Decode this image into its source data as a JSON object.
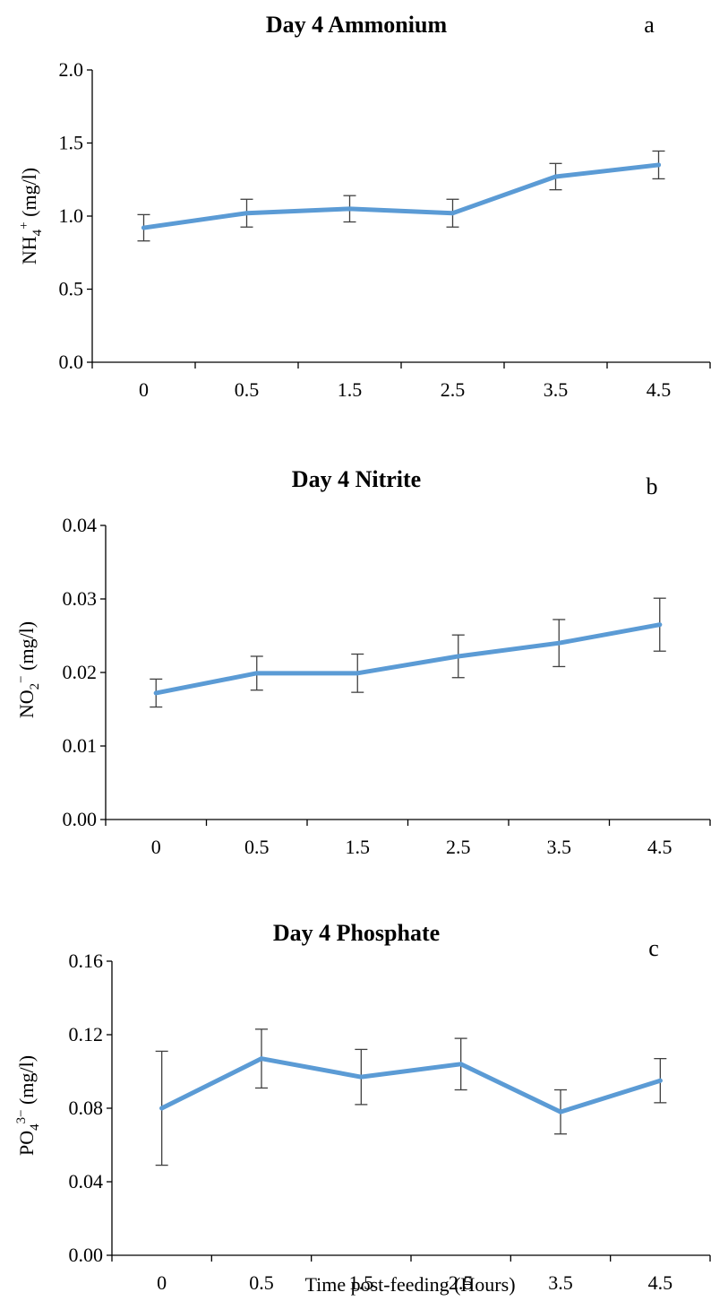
{
  "figure": {
    "xlabel": "Time post-feeding (Hours)",
    "colors": {
      "series": "#5B9BD5",
      "axis": "#000000",
      "errorbar": "#404040"
    }
  },
  "chart_data": [
    {
      "type": "line",
      "title": "Day 4 Ammonium",
      "panel_letter": "a",
      "ylabel": {
        "main": "NH",
        "sub": "4",
        "sup": "+",
        "unit": " (mg/l)"
      },
      "xlabel": "",
      "categories": [
        "0",
        "0.5",
        "1.5",
        "2.5",
        "3.5",
        "4.5"
      ],
      "values": [
        0.92,
        1.02,
        1.05,
        1.02,
        1.27,
        1.35
      ],
      "errors": [
        0.09,
        0.095,
        0.09,
        0.095,
        0.09,
        0.095
      ],
      "ylim": [
        0,
        2.0
      ],
      "yticks": [
        "0.0",
        "0.5",
        "1.0",
        "1.5",
        "2.0"
      ],
      "grid": false
    },
    {
      "type": "line",
      "title": "Day 4 Nitrite",
      "panel_letter": "b",
      "ylabel": {
        "main": "NO",
        "sub": "2",
        "sup": "−",
        "unit": " (mg/l)"
      },
      "xlabel": "",
      "categories": [
        "0",
        "0.5",
        "1.5",
        "2.5",
        "3.5",
        "4.5"
      ],
      "values": [
        0.0172,
        0.0199,
        0.0199,
        0.0222,
        0.024,
        0.0265
      ],
      "errors": [
        0.0019,
        0.0023,
        0.0026,
        0.0029,
        0.0032,
        0.0036
      ],
      "ylim": [
        0,
        0.04
      ],
      "yticks": [
        "0.00",
        "0.01",
        "0.02",
        "0.03",
        "0.04"
      ],
      "grid": false
    },
    {
      "type": "line",
      "title": "Day 4 Phosphate",
      "panel_letter": "c",
      "ylabel": {
        "main": "PO",
        "sub": "4",
        "sup": "3−",
        "unit": "  (mg/l)"
      },
      "xlabel": "Time post-feeding (Hours)",
      "categories": [
        "0",
        "0.5",
        "1.5",
        "2.5",
        "3.5",
        "4.5"
      ],
      "values": [
        0.08,
        0.107,
        0.097,
        0.104,
        0.078,
        0.095
      ],
      "errors": [
        0.031,
        0.016,
        0.015,
        0.014,
        0.012,
        0.012
      ],
      "ylim": [
        0,
        0.16
      ],
      "yticks": [
        "0.00",
        "0.04",
        "0.08",
        "0.12",
        "0.16"
      ],
      "grid": false
    }
  ]
}
